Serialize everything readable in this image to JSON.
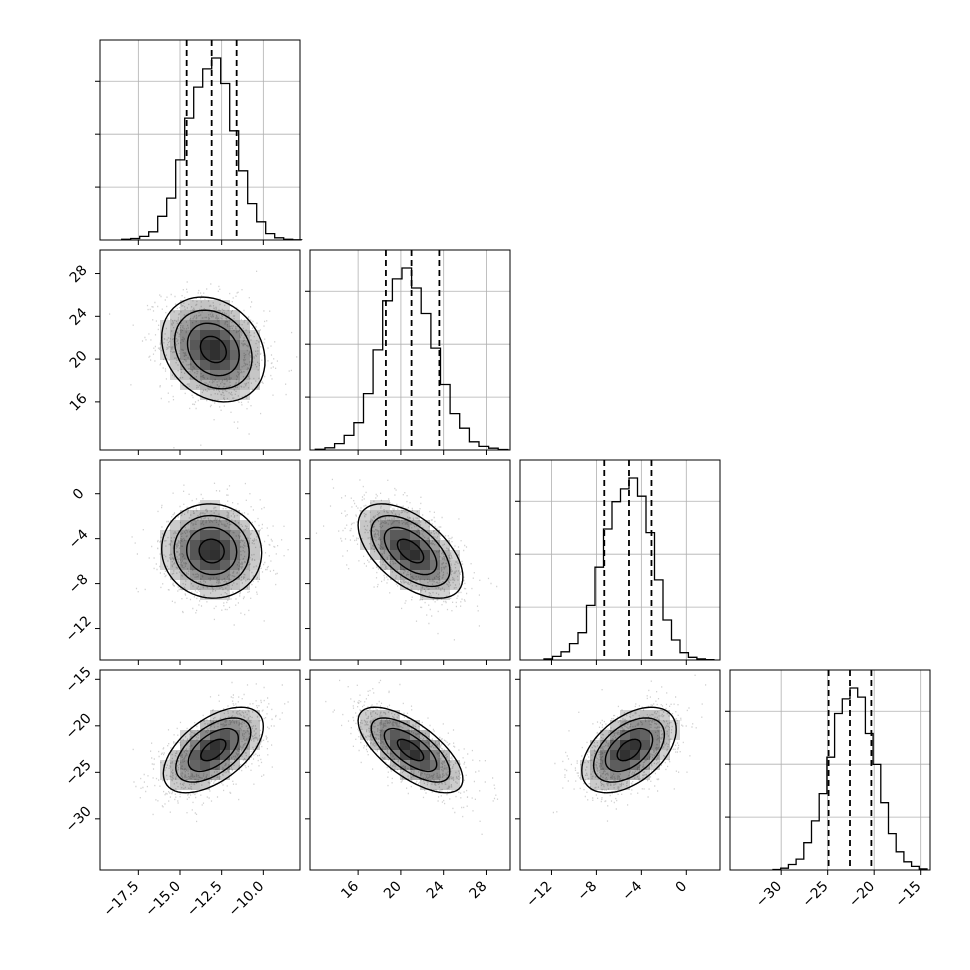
{
  "chart_data": {
    "type": "corner",
    "params": [
      {
        "id": "p0",
        "range": [
          -19.8,
          -7.8
        ],
        "ticks": [
          -17.5,
          -15.0,
          -12.5,
          -10.0
        ],
        "tick_labels": [
          "−17.5",
          "−15.0",
          "−12.5",
          "−10.0"
        ],
        "quantiles": [
          -14.6,
          -13.1,
          -11.6
        ],
        "hist": [
          0.004,
          0.008,
          0.02,
          0.045,
          0.13,
          0.23,
          0.44,
          0.67,
          0.84,
          0.94,
          1.0,
          0.86,
          0.6,
          0.38,
          0.2,
          0.1,
          0.035,
          0.012,
          0.004,
          0.001
        ]
      },
      {
        "id": "p1",
        "range": [
          11.5,
          30.2
        ],
        "ticks": [
          16,
          20,
          24,
          28
        ],
        "tick_labels": [
          "16",
          "20",
          "24",
          "28"
        ],
        "quantiles": [
          18.6,
          21.0,
          23.6
        ],
        "hist": [
          0.004,
          0.012,
          0.035,
          0.08,
          0.15,
          0.31,
          0.55,
          0.82,
          0.94,
          1.0,
          0.89,
          0.75,
          0.56,
          0.36,
          0.2,
          0.12,
          0.045,
          0.02,
          0.01,
          0.003
        ]
      },
      {
        "id": "p2",
        "range": [
          -14.8,
          3.0
        ],
        "ticks": [
          -12,
          -8,
          -4,
          0
        ],
        "tick_labels": [
          "−12",
          "−8",
          "−4",
          "0"
        ],
        "quantiles": [
          -7.3,
          -5.1,
          -3.1
        ],
        "hist": [
          0.006,
          0.02,
          0.045,
          0.09,
          0.15,
          0.3,
          0.51,
          0.72,
          0.87,
          0.94,
          1.0,
          0.9,
          0.7,
          0.44,
          0.22,
          0.11,
          0.04,
          0.015,
          0.006,
          0.002
        ]
      },
      {
        "id": "p3",
        "range": [
          -35.5,
          -14.0
        ],
        "ticks": [
          -30,
          -25,
          -20,
          -15
        ],
        "tick_labels": [
          "−30",
          "−25",
          "−20",
          "−15"
        ],
        "quantiles": [
          -24.9,
          -22.6,
          -20.3
        ],
        "hist": [
          0.003,
          0.01,
          0.03,
          0.06,
          0.15,
          0.27,
          0.42,
          0.62,
          0.86,
          0.94,
          1.0,
          0.95,
          0.75,
          0.58,
          0.37,
          0.2,
          0.1,
          0.045,
          0.02,
          0.006
        ]
      }
    ],
    "pairs": [
      {
        "x": 0,
        "y": 1,
        "center": [
          -13.0,
          20.9
        ],
        "sd": [
          1.55,
          2.45
        ],
        "rho": -0.22
      },
      {
        "x": 0,
        "y": 2,
        "center": [
          -13.1,
          -5.1
        ],
        "sd": [
          1.5,
          2.1
        ],
        "rho": -0.04
      },
      {
        "x": 1,
        "y": 2,
        "center": [
          20.9,
          -5.1
        ],
        "sd": [
          2.45,
          2.1
        ],
        "rho": -0.55
      },
      {
        "x": 0,
        "y": 3,
        "center": [
          -13.0,
          -22.6
        ],
        "sd": [
          1.5,
          2.3
        ],
        "rho": 0.55
      },
      {
        "x": 1,
        "y": 3,
        "center": [
          20.9,
          -22.6
        ],
        "sd": [
          2.45,
          2.3
        ],
        "rho": -0.68
      },
      {
        "x": 2,
        "y": 3,
        "center": [
          -5.1,
          -22.6
        ],
        "sd": [
          2.1,
          2.3
        ],
        "rho": 0.48
      }
    ],
    "contour_levels_sigma": [
      0.5,
      1.0,
      1.5,
      2.0
    ],
    "quantile_style": "dashed",
    "grid": true,
    "colors": {
      "line": "#000000",
      "points": "#000000",
      "density": "#000000",
      "grid": "#b0b0b0"
    }
  }
}
